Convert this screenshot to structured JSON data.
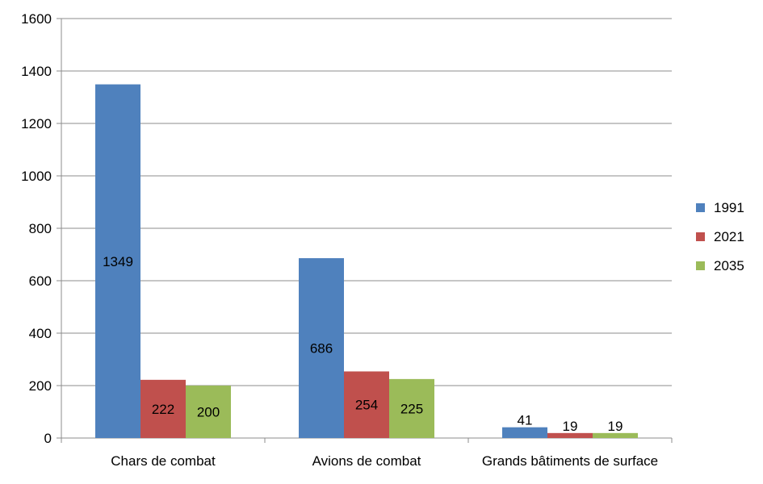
{
  "chart_data": {
    "type": "bar",
    "title": "",
    "xlabel": "",
    "ylabel": "",
    "categories": [
      "Chars de combat",
      "Avions de combat",
      "Grands bâtiments de surface"
    ],
    "series": [
      {
        "name": "1991",
        "values": [
          1349,
          686,
          41
        ],
        "color": "#4F81BD"
      },
      {
        "name": "2021",
        "values": [
          222,
          254,
          19
        ],
        "color": "#C0504D"
      },
      {
        "name": "2035",
        "values": [
          200,
          225,
          19
        ],
        "color": "#9BBB59"
      }
    ],
    "ylim": [
      0,
      1600
    ],
    "yticks": [
      0,
      200,
      400,
      600,
      800,
      1000,
      1200,
      1400,
      1600
    ],
    "grid": true,
    "legend_position": "right",
    "data_labels": true
  }
}
